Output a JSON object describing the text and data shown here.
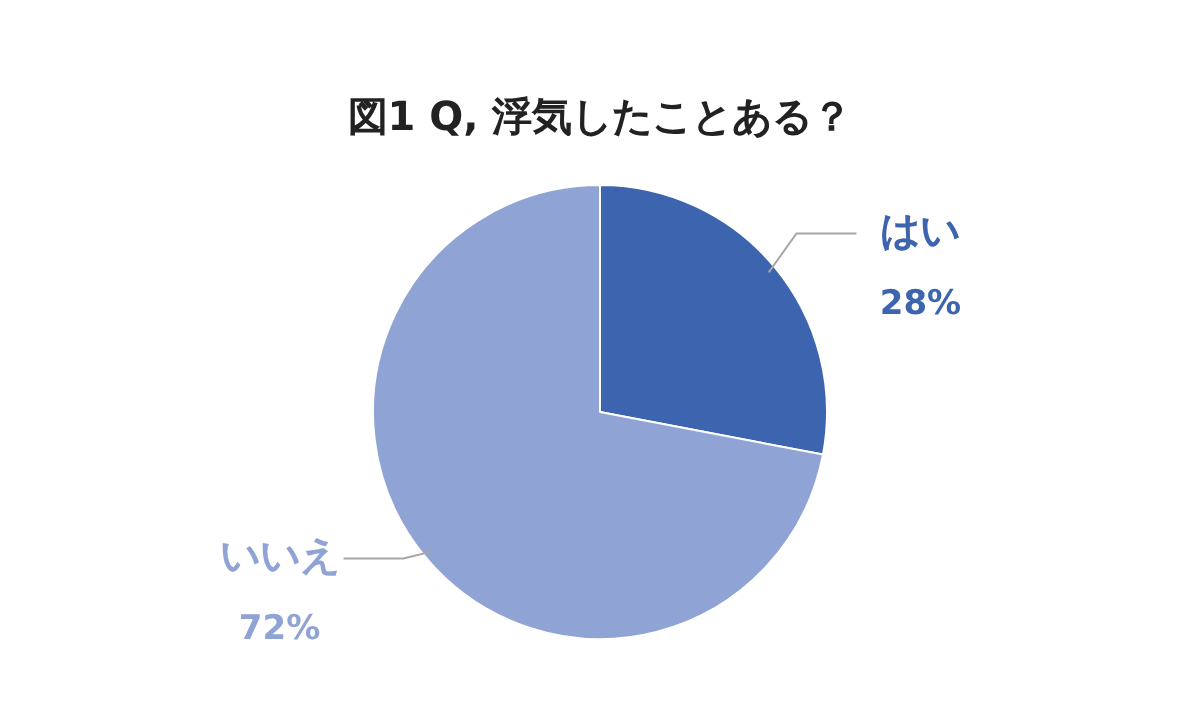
{
  "chart_data": {
    "type": "pie",
    "title": "図1 Q, 浮気したことある？",
    "categories": [
      "はい",
      "いいえ"
    ],
    "values": [
      28,
      72
    ],
    "colors": [
      "#3d64ae",
      "#8fa3d4"
    ],
    "value_labels": [
      "28%",
      "72%"
    ],
    "legend": false
  }
}
